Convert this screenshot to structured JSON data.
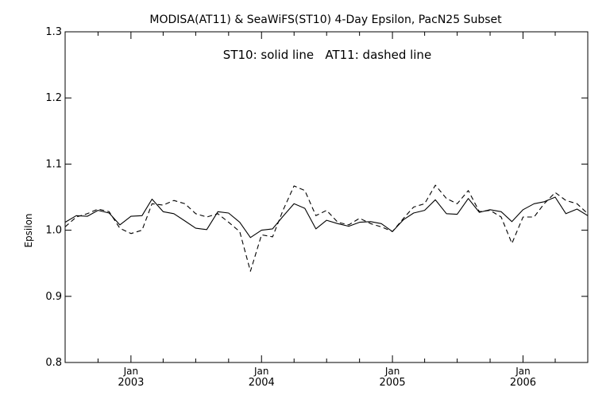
{
  "chart_data": {
    "type": "line",
    "title": "MODISA(AT11) & SeaWiFS(ST10) 4-Day Epsilon, PacN25 Subset",
    "annotation": "ST10: solid line   AT11: dashed line",
    "xlabel": "",
    "ylabel": "Epsilon",
    "xlim": [
      "2002-07-01",
      "2006-07-01"
    ],
    "ylim": [
      0.8,
      1.3
    ],
    "yticks": [
      0.8,
      0.9,
      1.0,
      1.1,
      1.2,
      1.3
    ],
    "ytick_labels": [
      "0.8",
      "0.9",
      "1.0",
      "1.1",
      "1.2",
      "1.3"
    ],
    "xtick_top_labels": [
      "Jan",
      "Jan",
      "Jan",
      "Jan"
    ],
    "xtick_labels": [
      "2003",
      "2004",
      "2005",
      "2006"
    ],
    "xtick_dates": [
      "2003-01-01",
      "2004-01-01",
      "2005-01-01",
      "2006-01-01"
    ],
    "grid": false,
    "x": [
      "2002-07-01",
      "2002-08-01",
      "2002-09-01",
      "2002-10-01",
      "2002-11-01",
      "2002-12-01",
      "2003-01-01",
      "2003-02-01",
      "2003-03-01",
      "2003-04-01",
      "2003-05-01",
      "2003-06-01",
      "2003-07-01",
      "2003-08-01",
      "2003-09-01",
      "2003-10-01",
      "2003-11-01",
      "2003-12-01",
      "2004-01-01",
      "2004-02-01",
      "2004-03-01",
      "2004-04-01",
      "2004-05-01",
      "2004-06-01",
      "2004-07-01",
      "2004-08-01",
      "2004-09-01",
      "2004-10-01",
      "2004-11-01",
      "2004-12-01",
      "2005-01-01",
      "2005-02-01",
      "2005-03-01",
      "2005-04-01",
      "2005-05-01",
      "2005-06-01",
      "2005-07-01",
      "2005-08-01",
      "2005-09-01",
      "2005-10-01",
      "2005-11-01",
      "2005-12-01",
      "2006-01-01",
      "2006-02-01",
      "2006-03-01",
      "2006-04-01",
      "2006-05-01",
      "2006-06-01",
      "2006-07-01"
    ],
    "series": [
      {
        "name": "ST10",
        "style": "solid",
        "color": "#000000",
        "values": [
          1.012,
          1.022,
          1.021,
          1.03,
          1.026,
          1.008,
          1.021,
          1.022,
          1.047,
          1.028,
          1.025,
          1.014,
          1.003,
          1.001,
          1.028,
          1.026,
          1.012,
          0.989,
          1.0,
          1.002,
          1.021,
          1.04,
          1.033,
          1.002,
          1.015,
          1.01,
          1.006,
          1.012,
          1.013,
          1.01,
          0.998,
          1.016,
          1.026,
          1.03,
          1.046,
          1.025,
          1.024,
          1.048,
          1.027,
          1.031,
          1.028,
          1.013,
          1.031,
          1.04,
          1.043,
          1.05,
          1.025,
          1.032,
          1.022
        ]
      },
      {
        "name": "AT11",
        "style": "dashed",
        "color": "#000000",
        "values": [
          1.005,
          1.02,
          1.025,
          1.032,
          1.028,
          1.003,
          0.995,
          1.0,
          1.04,
          1.038,
          1.045,
          1.04,
          1.025,
          1.02,
          1.025,
          1.012,
          0.998,
          0.938,
          0.993,
          0.99,
          1.03,
          1.067,
          1.06,
          1.022,
          1.03,
          1.012,
          1.008,
          1.018,
          1.01,
          1.005,
          0.998,
          1.018,
          1.035,
          1.04,
          1.068,
          1.048,
          1.04,
          1.06,
          1.028,
          1.03,
          1.02,
          0.98,
          1.02,
          1.02,
          1.04,
          1.057,
          1.045,
          1.04,
          1.025
        ]
      }
    ]
  }
}
